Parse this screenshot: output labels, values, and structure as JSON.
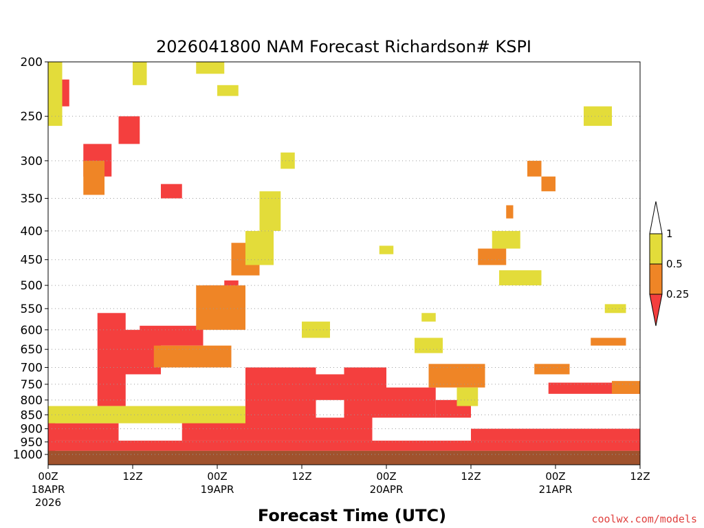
{
  "chart_data": {
    "type": "heatmap",
    "title": "2026041800 NAM Forecast Richardson# KSPI",
    "xlabel": "Forecast Time (UTC)",
    "ylabel": "",
    "y_axis": {
      "scale": "log",
      "inverted": true,
      "range": [
        1000,
        200
      ],
      "ticks": [
        "200",
        "250",
        "300",
        "350",
        "400",
        "450",
        "500",
        "550",
        "600",
        "650",
        "700",
        "750",
        "800",
        "850",
        "900",
        "950",
        "1000"
      ]
    },
    "x_axis": {
      "range_hours": [
        0,
        84
      ],
      "ticks": [
        {
          "hour": 0,
          "lines": [
            "00Z",
            "18APR",
            "2026"
          ]
        },
        {
          "hour": 12,
          "lines": [
            "12Z"
          ]
        },
        {
          "hour": 24,
          "lines": [
            "00Z",
            "19APR"
          ]
        },
        {
          "hour": 36,
          "lines": [
            "12Z"
          ]
        },
        {
          "hour": 48,
          "lines": [
            "00Z",
            "20APR"
          ]
        },
        {
          "hour": 60,
          "lines": [
            "12Z"
          ]
        },
        {
          "hour": 72,
          "lines": [
            "00Z",
            "21APR"
          ]
        },
        {
          "hour": 84,
          "lines": [
            "12Z"
          ]
        }
      ]
    },
    "grid": "dotted-horizontal",
    "legend": {
      "placement": "right",
      "levels": [
        "1",
        "0.5",
        "0.25"
      ],
      "colors": {
        "yellow": "#e3dc3a",
        "orange": "#ef8526",
        "red": "#f43f3e",
        "ground": "#a0522d"
      }
    },
    "credit": "coolwx.com/models",
    "data": [
      {
        "h_from": 0,
        "h_to": 1,
        "p_from": 1000,
        "p_to": 870,
        "ri": "<0.25"
      },
      {
        "h_from": 0,
        "h_to": 1,
        "p_from": 1000,
        "p_to": 970,
        "ri": "<0.25"
      },
      {
        "h_from": 0,
        "h_to": 84,
        "p_from": 1025,
        "p_to": 985,
        "ri": "ground"
      },
      {
        "h_from": 0,
        "h_to": 84,
        "p_from": 985,
        "p_to": 945,
        "ri": "<0.25"
      },
      {
        "h_from": 0,
        "h_to": 10,
        "p_from": 945,
        "p_to": 880,
        "ri": "<0.25"
      },
      {
        "h_from": 19,
        "h_to": 46,
        "p_from": 945,
        "p_to": 860,
        "ri": "<0.25"
      },
      {
        "h_from": 28,
        "h_to": 38,
        "p_from": 860,
        "p_to": 700,
        "ri": "<0.25"
      },
      {
        "h_from": 38,
        "h_to": 42,
        "p_from": 800,
        "p_to": 720,
        "ri": "<0.25"
      },
      {
        "h_from": 42,
        "h_to": 48,
        "p_from": 860,
        "p_to": 700,
        "ri": "<0.25"
      },
      {
        "h_from": 48,
        "h_to": 55,
        "p_from": 860,
        "p_to": 760,
        "ri": "<0.25"
      },
      {
        "h_from": 55,
        "h_to": 60,
        "p_from": 860,
        "p_to": 800,
        "ri": "<0.25"
      },
      {
        "h_from": 60,
        "h_to": 84,
        "p_from": 945,
        "p_to": 900,
        "ri": "<0.25"
      },
      {
        "h_from": 71,
        "h_to": 84,
        "p_from": 780,
        "p_to": 745,
        "ri": "<0.25"
      },
      {
        "h_from": 7,
        "h_to": 11,
        "p_from": 820,
        "p_to": 560,
        "ri": "<0.25"
      },
      {
        "h_from": 10,
        "h_to": 16,
        "p_from": 720,
        "p_to": 600,
        "ri": "<0.25"
      },
      {
        "h_from": 13,
        "h_to": 22,
        "p_from": 640,
        "p_to": 590,
        "ri": "<0.25"
      },
      {
        "h_from": 22,
        "h_to": 26,
        "p_from": 580,
        "p_to": 500,
        "ri": "<0.25"
      },
      {
        "h_from": 25,
        "h_to": 27,
        "p_from": 520,
        "p_to": 490,
        "ri": "<0.25"
      },
      {
        "h_from": 5,
        "h_to": 9,
        "p_from": 320,
        "p_to": 280,
        "ri": "<0.25"
      },
      {
        "h_from": 10,
        "h_to": 13,
        "p_from": 280,
        "p_to": 250,
        "ri": "<0.25"
      },
      {
        "h_from": 1,
        "h_to": 3,
        "p_from": 240,
        "p_to": 215,
        "ri": "<0.25"
      },
      {
        "h_from": 16,
        "h_to": 19,
        "p_from": 350,
        "p_to": 330,
        "ri": "<0.25"
      },
      {
        "h_from": 5,
        "h_to": 8,
        "p_from": 345,
        "p_to": 300,
        "ri": "0.25-0.5"
      },
      {
        "h_from": 15,
        "h_to": 26,
        "p_from": 700,
        "p_to": 640,
        "ri": "0.25-0.5"
      },
      {
        "h_from": 21,
        "h_to": 28,
        "p_from": 600,
        "p_to": 500,
        "ri": "0.25-0.5"
      },
      {
        "h_from": 26,
        "h_to": 30,
        "p_from": 480,
        "p_to": 420,
        "ri": "0.25-0.5"
      },
      {
        "h_from": 54,
        "h_to": 62,
        "p_from": 760,
        "p_to": 690,
        "ri": "0.25-0.5"
      },
      {
        "h_from": 69,
        "h_to": 74,
        "p_from": 720,
        "p_to": 690,
        "ri": "0.25-0.5"
      },
      {
        "h_from": 61,
        "h_to": 65,
        "p_from": 460,
        "p_to": 430,
        "ri": "0.25-0.5"
      },
      {
        "h_from": 65,
        "h_to": 66,
        "p_from": 380,
        "p_to": 360,
        "ri": "0.25-0.5"
      },
      {
        "h_from": 68,
        "h_to": 70,
        "p_from": 320,
        "p_to": 300,
        "ri": "0.25-0.5"
      },
      {
        "h_from": 70,
        "h_to": 72,
        "p_from": 340,
        "p_to": 320,
        "ri": "0.25-0.5"
      },
      {
        "h_from": 80,
        "h_to": 84,
        "p_from": 780,
        "p_to": 740,
        "ri": "0.25-0.5"
      },
      {
        "h_from": 77,
        "h_to": 82,
        "p_from": 640,
        "p_to": 620,
        "ri": "0.25-0.5"
      },
      {
        "h_from": 0,
        "h_to": 28,
        "p_from": 880,
        "p_to": 820,
        "ri": "0.5-1"
      },
      {
        "h_from": 28,
        "h_to": 32,
        "p_from": 460,
        "p_to": 400,
        "ri": "0.5-1"
      },
      {
        "h_from": 30,
        "h_to": 33,
        "p_from": 400,
        "p_to": 340,
        "ri": "0.5-1"
      },
      {
        "h_from": 36,
        "h_to": 40,
        "p_from": 620,
        "p_to": 580,
        "ri": "0.5-1"
      },
      {
        "h_from": 52,
        "h_to": 56,
        "p_from": 660,
        "p_to": 620,
        "ri": "0.5-1"
      },
      {
        "h_from": 58,
        "h_to": 61,
        "p_from": 820,
        "p_to": 760,
        "ri": "0.5-1"
      },
      {
        "h_from": 63,
        "h_to": 67,
        "p_from": 430,
        "p_to": 400,
        "ri": "0.5-1"
      },
      {
        "h_from": 64,
        "h_to": 70,
        "p_from": 500,
        "p_to": 470,
        "ri": "0.5-1"
      },
      {
        "h_from": 76,
        "h_to": 80,
        "p_from": 260,
        "p_to": 240,
        "ri": "0.5-1"
      },
      {
        "h_from": 79,
        "h_to": 82,
        "p_from": 560,
        "p_to": 540,
        "ri": "0.5-1"
      },
      {
        "h_from": 0,
        "h_to": 2,
        "p_from": 260,
        "p_to": 200,
        "ri": "0.5-1"
      },
      {
        "h_from": 12,
        "h_to": 14,
        "p_from": 220,
        "p_to": 200,
        "ri": "0.5-1"
      },
      {
        "h_from": 21,
        "h_to": 25,
        "p_from": 210,
        "p_to": 200,
        "ri": "0.5-1"
      },
      {
        "h_from": 24,
        "h_to": 27,
        "p_from": 230,
        "p_to": 220,
        "ri": "0.5-1"
      },
      {
        "h_from": 33,
        "h_to": 35,
        "p_from": 310,
        "p_to": 290,
        "ri": "0.5-1"
      },
      {
        "h_from": 47,
        "h_to": 49,
        "p_from": 440,
        "p_to": 425,
        "ri": "0.5-1"
      },
      {
        "h_from": 53,
        "h_to": 55,
        "p_from": 580,
        "p_to": 560,
        "ri": "0.5-1"
      }
    ]
  }
}
